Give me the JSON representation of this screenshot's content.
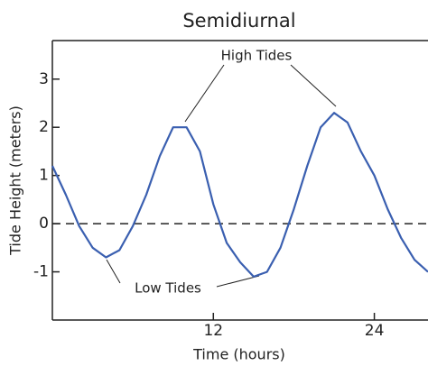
{
  "chart_data": {
    "type": "line",
    "title": "Semidiurnal",
    "x_label": "Time (hours)",
    "y_label": "Tide Height (meters)",
    "x": [
      0,
      1,
      2,
      3,
      4,
      5,
      6,
      7,
      8,
      9,
      10,
      11,
      12,
      13,
      14,
      15,
      16,
      17,
      18,
      19,
      20,
      21,
      22,
      23,
      24,
      25,
      26,
      27,
      28
    ],
    "values": [
      1.2,
      0.6,
      -0.05,
      -0.5,
      -0.7,
      -0.55,
      -0.05,
      0.6,
      1.4,
      2.0,
      2.0,
      1.5,
      0.4,
      -0.4,
      -0.8,
      -1.1,
      -1.0,
      -0.5,
      0.3,
      1.2,
      2.0,
      2.3,
      2.1,
      1.5,
      1.0,
      0.3,
      -0.3,
      -0.75,
      -1.0
    ],
    "color": "#3a5fb0",
    "xlim": [
      0,
      28
    ],
    "xticks": [
      12,
      24
    ],
    "ylim": [
      -2,
      3.8
    ],
    "yticks": [
      3,
      2,
      1,
      0,
      -1
    ],
    "zero_line": true,
    "annotations": [
      "High Tides",
      "Low Tides"
    ]
  }
}
